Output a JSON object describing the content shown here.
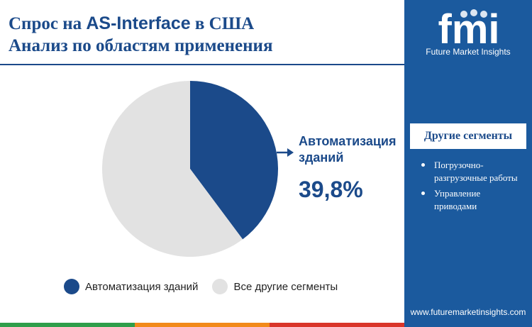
{
  "title": {
    "line1_prefix": "Спрос на",
    "line1_accent": "AS-Interface",
    "line1_suffix": "в США",
    "line2": "Анализ по областям применения"
  },
  "chart_data": {
    "type": "pie",
    "slices": [
      {
        "label": "Автоматизация зданий",
        "value": 39.8,
        "color": "#1b4a8a"
      },
      {
        "label": "Все другие сегменты",
        "value": 60.2,
        "color": "#e2e2e2"
      }
    ],
    "callout": {
      "label": "Автоматизация зданий",
      "value_text": "39,8%"
    },
    "legend_position": "bottom"
  },
  "legend": {
    "items": [
      {
        "label": "Автоматизация зданий",
        "color": "#1b4a8a"
      },
      {
        "label": "Все другие сегменты",
        "color": "#e2e2e2"
      }
    ]
  },
  "sidebar": {
    "logo_text": "fmi",
    "logo_caption": "Future Market Insights",
    "heading": "Другие сегменты",
    "items": [
      "Погрузочно-разгрузочные работы",
      "Управление приводами"
    ],
    "website": "www.futuremarketinsights.com"
  },
  "colors": {
    "brand_blue": "#1b4a8a",
    "sidebar_blue": "#1b5a9e",
    "grey": "#e2e2e2",
    "bar": [
      "#2e9e4a",
      "#f28a1a",
      "#d9352a",
      "#1b5a9e"
    ]
  }
}
